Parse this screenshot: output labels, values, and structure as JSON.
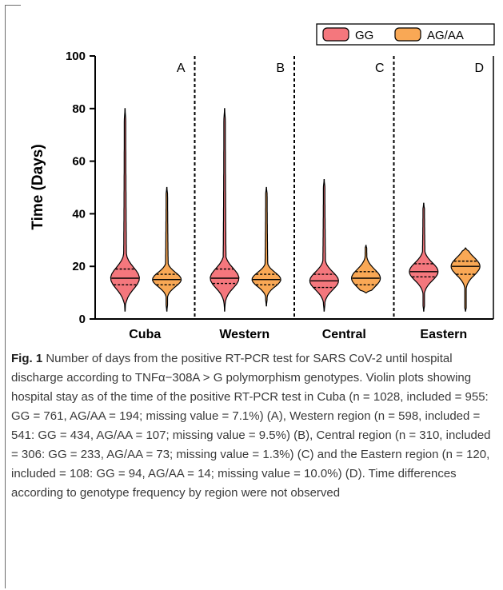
{
  "chart_data": {
    "type": "violin",
    "title": "",
    "ylabel": "Time (Days)",
    "xlabel": "",
    "ylim": [
      0,
      100
    ],
    "yticks": [
      0,
      20,
      40,
      60,
      80,
      100
    ],
    "categories": [
      "Cuba",
      "Western",
      "Central",
      "Eastern"
    ],
    "panel_letters": [
      "A",
      "B",
      "C",
      "D"
    ],
    "legend_position": "top-right",
    "series": [
      {
        "name": "GG",
        "color": "#f4777d",
        "groups": [
          {
            "min": 3,
            "max": 80,
            "q1": 13,
            "median": 15.5,
            "q3": 19
          },
          {
            "min": 3,
            "max": 80,
            "q1": 13.5,
            "median": 15.5,
            "q3": 19
          },
          {
            "min": 3,
            "max": 53,
            "q1": 12,
            "median": 14.5,
            "q3": 17
          },
          {
            "min": 3,
            "max": 44,
            "q1": 16,
            "median": 18,
            "q3": 21
          }
        ]
      },
      {
        "name": "AG/AA",
        "color": "#f9a855",
        "groups": [
          {
            "min": 3,
            "max": 50,
            "q1": 13,
            "median": 15,
            "q3": 17
          },
          {
            "min": 5,
            "max": 50,
            "q1": 13,
            "median": 15,
            "q3": 17
          },
          {
            "min": 10,
            "max": 28,
            "q1": 13,
            "median": 15.5,
            "q3": 18
          },
          {
            "min": 3,
            "max": 27,
            "q1": 17,
            "median": 20,
            "q3": 22
          }
        ]
      }
    ]
  },
  "caption": {
    "label": "Fig. 1",
    "text": "Number of days from the positive RT-PCR test for SARS CoV-2 until hospital discharge according to TNFα−308A > G polymorphism genotypes. Violin plots showing hospital stay as of the time of the positive RT-PCR test in Cuba (n = 1028, included = 955: GG = 761, AG/AA = 194; missing value = 7.1%) (A), Western region (n = 598, included = 541: GG = 434, AG/AA = 107; missing value = 9.5%) (B), Central region (n = 310, included = 306: GG = 233, AG/AA = 73; missing value = 1.3%) (C) and the Eastern region (n = 120, included = 108: GG = 94, AG/AA = 14; missing value = 10.0%) (D). Time differences according to genotype frequency by region were not observed"
  }
}
